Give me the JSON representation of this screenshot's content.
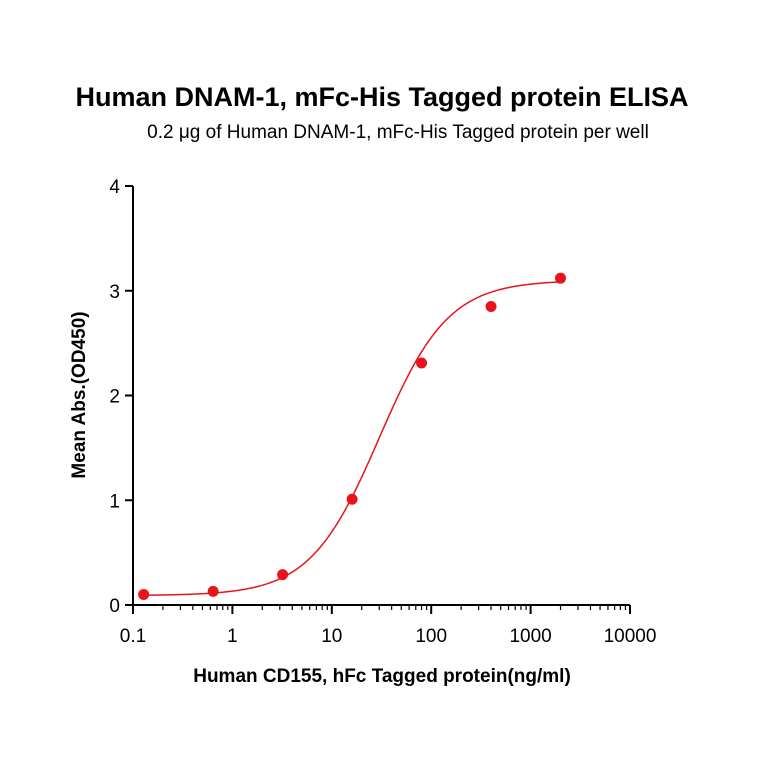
{
  "chart_data": {
    "type": "scatter",
    "title": "Human DNAM-1, mFc-His Tagged protein ELISA",
    "subtitle": "0.2 μg of Human DNAM-1, mFc-His Tagged protein per well",
    "xlabel": "Human CD155, hFc Tagged protein(ng/ml)",
    "ylabel": "Mean Abs.(OD450)",
    "xscale": "log",
    "xlim": [
      0.1,
      10000
    ],
    "ylim": [
      0,
      4
    ],
    "xticks": [
      0.1,
      1,
      10,
      100,
      1000,
      10000
    ],
    "xtick_labels": [
      "0.1",
      "1",
      "10",
      "100",
      "1000",
      "10000"
    ],
    "yticks": [
      0,
      1,
      2,
      3,
      4
    ],
    "ytick_labels": [
      "0",
      "1",
      "2",
      "3",
      "4"
    ],
    "grid": false,
    "color": "#e8141b",
    "points": {
      "x": [
        0.128,
        0.64,
        3.2,
        16,
        80,
        400,
        2000
      ],
      "y": [
        0.1,
        0.13,
        0.29,
        1.01,
        2.31,
        2.85,
        3.12
      ]
    },
    "fit": {
      "model": "4PL",
      "bottom": 0.09,
      "top": 3.1,
      "ec50": 30,
      "hill": 1.25,
      "x_range": [
        0.128,
        2000
      ]
    }
  }
}
